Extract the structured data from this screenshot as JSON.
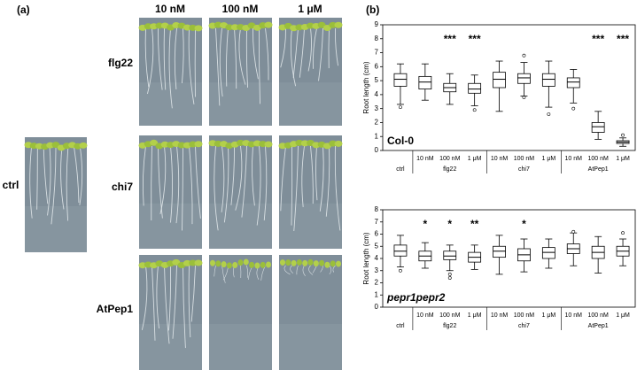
{
  "panel_a": {
    "label": "(a)",
    "columns": [
      "10 nM",
      "100 nM",
      "1 μM"
    ],
    "rows": [
      "flg22",
      "chi7",
      "AtPep1"
    ],
    "ctrl": "ctrl"
  },
  "panel_b_label": "(b)",
  "chart_data": [
    {
      "type": "boxplot",
      "ylabel": "Root length (cm)",
      "label": "Col-0",
      "label_italic": false,
      "categories": [
        null,
        "10 nM",
        "100 nM",
        "1 μM",
        "10 nM",
        "100 nM",
        "1 μM",
        "10 nM",
        "100 nM",
        "1 μM"
      ],
      "groups": [
        "ctrl",
        "flg22",
        "chi7",
        "AtPep1"
      ],
      "ylim": [
        0,
        9
      ],
      "yticks": [
        0,
        1,
        2,
        3,
        4,
        5,
        6,
        7,
        8,
        9
      ],
      "annotations": [
        null,
        null,
        "***",
        "***",
        null,
        null,
        null,
        null,
        "***",
        "***"
      ],
      "boxes": [
        {
          "min": 3.3,
          "q1": 4.6,
          "median": 5.1,
          "q3": 5.5,
          "max": 6.2,
          "outliers": [
            3.1
          ]
        },
        {
          "min": 3.6,
          "q1": 4.4,
          "median": 4.9,
          "q3": 5.3,
          "max": 6.2,
          "outliers": []
        },
        {
          "min": 3.3,
          "q1": 4.2,
          "median": 4.5,
          "q3": 4.8,
          "max": 5.5,
          "outliers": []
        },
        {
          "min": 3.2,
          "q1": 4.1,
          "median": 4.4,
          "q3": 4.8,
          "max": 5.4,
          "outliers": [
            2.9
          ]
        },
        {
          "min": 2.8,
          "q1": 4.5,
          "median": 5.1,
          "q3": 5.6,
          "max": 6.4,
          "outliers": []
        },
        {
          "min": 3.9,
          "q1": 4.8,
          "median": 5.2,
          "q3": 5.5,
          "max": 6.3,
          "outliers": [
            6.8,
            3.8
          ]
        },
        {
          "min": 3.1,
          "q1": 4.6,
          "median": 5.1,
          "q3": 5.5,
          "max": 6.4,
          "outliers": [
            2.6
          ]
        },
        {
          "min": 3.4,
          "q1": 4.5,
          "median": 4.9,
          "q3": 5.2,
          "max": 5.8,
          "outliers": [
            3.0
          ]
        },
        {
          "min": 0.8,
          "q1": 1.3,
          "median": 1.7,
          "q3": 2.0,
          "max": 2.8,
          "outliers": []
        },
        {
          "min": 0.3,
          "q1": 0.5,
          "median": 0.6,
          "q3": 0.7,
          "max": 0.9,
          "outliers": [
            1.1
          ]
        }
      ]
    },
    {
      "type": "boxplot",
      "ylabel": "Root length (cm)",
      "label": "pepr1pepr2",
      "label_italic": true,
      "categories": [
        null,
        "10 nM",
        "100 nM",
        "1 μM",
        "10 nM",
        "100 nM",
        "1 μM",
        "10 nM",
        "100 nM",
        "1 μM"
      ],
      "groups": [
        "ctrl",
        "flg22",
        "chi7",
        "AtPep1"
      ],
      "ylim": [
        0,
        8
      ],
      "yticks": [
        0,
        1,
        2,
        3,
        4,
        5,
        6,
        7,
        8
      ],
      "annotations": [
        null,
        "*",
        "*",
        "**",
        null,
        "*",
        null,
        null,
        null,
        null
      ],
      "boxes": [
        {
          "min": 3.3,
          "q1": 4.2,
          "median": 4.6,
          "q3": 5.1,
          "max": 5.9,
          "outliers": [
            3.0
          ]
        },
        {
          "min": 3.2,
          "q1": 3.8,
          "median": 4.2,
          "q3": 4.6,
          "max": 5.3,
          "outliers": []
        },
        {
          "min": 3.0,
          "q1": 3.9,
          "median": 4.2,
          "q3": 4.6,
          "max": 5.1,
          "outliers": [
            2.7,
            2.4
          ]
        },
        {
          "min": 3.1,
          "q1": 3.7,
          "median": 4.1,
          "q3": 4.5,
          "max": 5.1,
          "outliers": []
        },
        {
          "min": 2.7,
          "q1": 4.1,
          "median": 4.6,
          "q3": 5.0,
          "max": 5.9,
          "outliers": []
        },
        {
          "min": 2.9,
          "q1": 3.8,
          "median": 4.3,
          "q3": 4.8,
          "max": 5.6,
          "outliers": []
        },
        {
          "min": 3.2,
          "q1": 4.0,
          "median": 4.5,
          "q3": 4.9,
          "max": 5.6,
          "outliers": []
        },
        {
          "min": 3.4,
          "q1": 4.4,
          "median": 4.8,
          "q3": 5.2,
          "max": 6.1,
          "outliers": [
            6.2
          ]
        },
        {
          "min": 2.8,
          "q1": 4.0,
          "median": 4.5,
          "q3": 5.0,
          "max": 5.8,
          "outliers": []
        },
        {
          "min": 3.4,
          "q1": 4.2,
          "median": 4.6,
          "q3": 5.0,
          "max": 5.6,
          "outliers": [
            6.1
          ]
        }
      ]
    }
  ]
}
